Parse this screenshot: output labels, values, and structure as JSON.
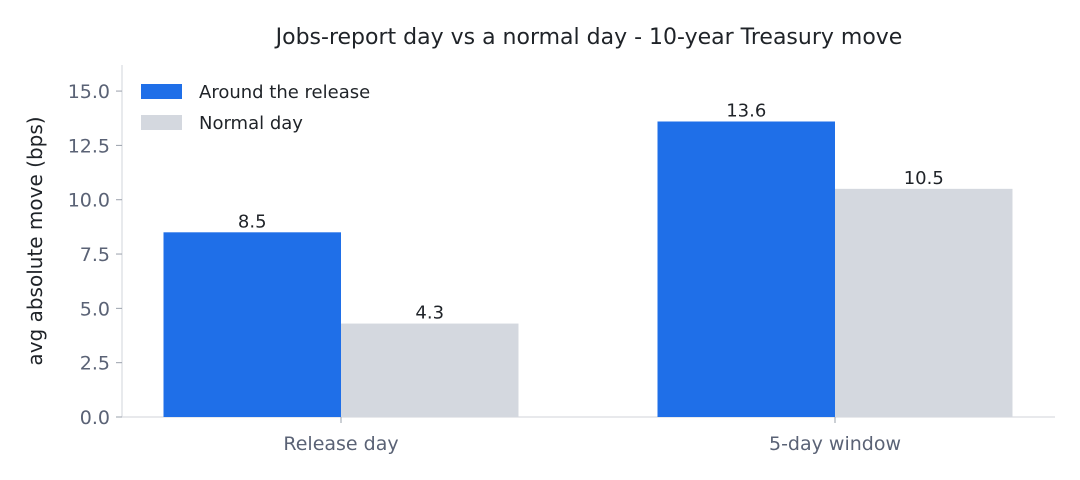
{
  "chart_data": {
    "type": "bar",
    "title": "Jobs-report day vs a normal day - 10-year Treasury move",
    "xlabel": "",
    "ylabel": "avg absolute move (bps)",
    "categories": [
      "Release day",
      "5-day window"
    ],
    "series": [
      {
        "name": "Around the release",
        "values": [
          8.5,
          13.6
        ],
        "labels": [
          "8.5",
          "13.6"
        ],
        "color": "#1f6fe8"
      },
      {
        "name": "Normal day",
        "values": [
          4.3,
          10.5
        ],
        "labels": [
          "4.3",
          "10.5"
        ],
        "color": "#d4d8df"
      }
    ],
    "ylim": [
      0,
      16.2
    ],
    "yticks": [
      0.0,
      2.5,
      5.0,
      7.5,
      10.0,
      12.5,
      15.0
    ],
    "ytick_labels": [
      "0.0",
      "2.5",
      "5.0",
      "7.5",
      "10.0",
      "12.5",
      "15.0"
    ],
    "grid": false,
    "legend_position": "top-left"
  }
}
